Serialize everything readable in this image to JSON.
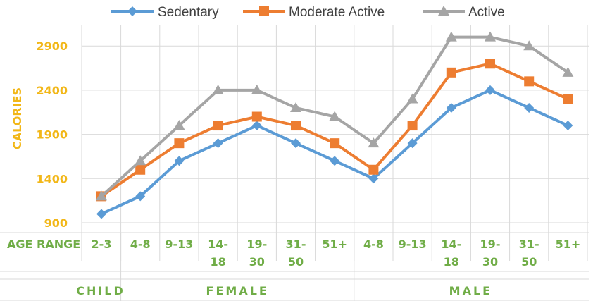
{
  "chart_data": {
    "type": "line",
    "ylabel": "CALORIES",
    "xlabel": "AGE RANGE",
    "ylim": [
      900,
      3000
    ],
    "yticks": [
      900,
      1400,
      1900,
      2400,
      2900
    ],
    "grid": true,
    "legend_position": "top",
    "categories": [
      [
        "2-3"
      ],
      [
        "4-8"
      ],
      [
        "9-13"
      ],
      [
        "14-",
        "18"
      ],
      [
        "19-",
        "30"
      ],
      [
        "31-",
        "50"
      ],
      [
        "51+"
      ],
      [
        "4-8"
      ],
      [
        "9-13"
      ],
      [
        "14-",
        "18"
      ],
      [
        "19-",
        "30"
      ],
      [
        "31-",
        "50"
      ],
      [
        "51+"
      ]
    ],
    "groups": [
      {
        "label": "CHILD",
        "span": [
          0,
          0
        ]
      },
      {
        "label": "FEMALE",
        "span": [
          1,
          6
        ]
      },
      {
        "label": "MALE",
        "span": [
          7,
          12
        ]
      }
    ],
    "series": [
      {
        "name": "Sedentary",
        "color": "#5b9bd5",
        "marker": "diamond",
        "values": [
          1000,
          1200,
          1600,
          1800,
          2000,
          1800,
          1600,
          1400,
          1800,
          2200,
          2400,
          2200,
          2000
        ]
      },
      {
        "name": "Moderate Active",
        "color": "#ed7d31",
        "marker": "square",
        "values": [
          1200,
          1500,
          1800,
          2000,
          2100,
          2000,
          1800,
          1500,
          2000,
          2600,
          2700,
          2500,
          2300
        ]
      },
      {
        "name": "Active",
        "color": "#a5a5a5",
        "marker": "triangle",
        "values": [
          1200,
          1600,
          2000,
          2400,
          2400,
          2200,
          2100,
          1800,
          2300,
          3000,
          3000,
          2900,
          2600
        ]
      }
    ]
  },
  "colors": {
    "axis_label": "#f2b718",
    "category_label": "#70ad47",
    "grid": "#d9d9d9"
  }
}
